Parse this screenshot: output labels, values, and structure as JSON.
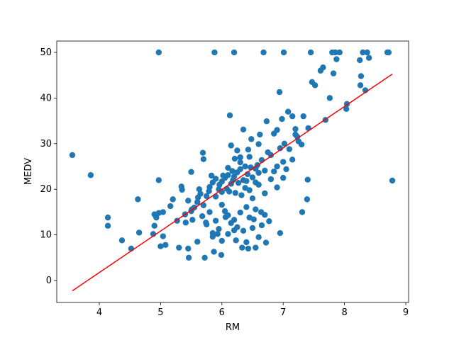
{
  "chart_data": {
    "type": "scatter",
    "x_label": "RM",
    "y_label": "MEDV",
    "xlim": [
      3.306,
      9.046
    ],
    "ylim": [
      -4.81,
      52.48
    ],
    "xticks": [
      4,
      5,
      6,
      7,
      8,
      9
    ],
    "yticks": [
      0,
      10,
      20,
      30,
      40,
      50
    ],
    "grid": false,
    "series": [
      {
        "type": "scatter",
        "color": "#1f77b4",
        "x": [
          3.56,
          3.86,
          4.14,
          4.14,
          4.37,
          4.52,
          4.63,
          4.65,
          4.88,
          4.9,
          4.9,
          4.93,
          4.97,
          4.97,
          4.97,
          5.0,
          5.04,
          5.04,
          5.08,
          5.16,
          5.2,
          5.27,
          5.3,
          5.34,
          5.35,
          5.4,
          5.41,
          5.45,
          5.46,
          5.5,
          5.51,
          5.52,
          5.6,
          5.61,
          5.63,
          5.68,
          5.69,
          5.7,
          5.72,
          5.74,
          5.79,
          5.83,
          5.85,
          5.88,
          5.87,
          5.9,
          5.93,
          5.96,
          5.99,
          6.0,
          6.02,
          6.06,
          6.1,
          6.13,
          6.15,
          6.18,
          6.2,
          6.21,
          6.23,
          6.3,
          6.33,
          6.38,
          6.43,
          6.43,
          6.48,
          6.5,
          6.52,
          6.55,
          6.6,
          6.62,
          6.64,
          6.68,
          6.72,
          6.73,
          6.77,
          6.8,
          6.85,
          6.9,
          6.94,
          6.95,
          6.98,
          7.01,
          7.02,
          7.08,
          7.15,
          7.2,
          7.23,
          7.31,
          7.33,
          7.39,
          7.41,
          7.45,
          7.47,
          7.52,
          7.61,
          7.65,
          7.69,
          7.76,
          7.8,
          7.82,
          7.85,
          7.87,
          7.92,
          8.03,
          8.04,
          8.25,
          8.27,
          8.26,
          8.3,
          8.34,
          8.37,
          8.4,
          8.7,
          8.72,
          8.78,
          5.8,
          5.85,
          5.9,
          5.95,
          6.0,
          6.05,
          6.08,
          6.1,
          6.12,
          6.15,
          6.17,
          6.2,
          6.22,
          6.25,
          6.27,
          6.3,
          6.32,
          6.35,
          6.38,
          6.4,
          6.42,
          6.45,
          6.47,
          6.5,
          6.55,
          6.58,
          6.6,
          6.65,
          6.7,
          6.75,
          6.8,
          6.85,
          5.75,
          5.7,
          5.65,
          5.6,
          5.55,
          5.5,
          5.45,
          6.0,
          6.05,
          6.1,
          6.15,
          6.2,
          6.25,
          6.3,
          6.35,
          6.4,
          6.45,
          6.5,
          6.55,
          6.6,
          6.65,
          6.7,
          5.9,
          5.95,
          5.8,
          5.85,
          5.75,
          6.0,
          6.1,
          6.2,
          6.4,
          6.55,
          6.7,
          6.9,
          7.0,
          6.95,
          7.1,
          7.2,
          7.25,
          7.05,
          6.45,
          6.3,
          6.25,
          6.6,
          6.9,
          7.0,
          7.15,
          7.3,
          7.4,
          6.35
        ],
        "values": [
          27.5,
          23.1,
          13.8,
          12.0,
          8.8,
          7.0,
          17.8,
          10.5,
          10.2,
          14.5,
          12.0,
          13.8,
          50,
          22.0,
          14.8,
          7.5,
          15.0,
          9.7,
          7.8,
          16.3,
          17.8,
          13.1,
          7.2,
          20.6,
          19.9,
          14.5,
          12.7,
          7.0,
          5.0,
          23.8,
          15.6,
          13.3,
          8.5,
          18.2,
          20.0,
          14.1,
          28.0,
          26.6,
          5.0,
          12.7,
          19.6,
          23.0,
          10.4,
          50,
          6.3,
          18.4,
          10.2,
          21.0,
          5.6,
          19.4,
          23.0,
          13.9,
          24.7,
          36.2,
          29.6,
          22.0,
          50,
          26.7,
          8.8,
          27.0,
          7.2,
          20.3,
          7.0,
          28.7,
          31.0,
          18.0,
          13.4,
          24.5,
          21.0,
          32.0,
          15.0,
          50,
          8.3,
          34.9,
          13.0,
          27.5,
          32.2,
          25.0,
          41.3,
          10.4,
          35.4,
          50,
          30.0,
          37.0,
          36.0,
          32.0,
          31.5,
          15.0,
          36.0,
          17.8,
          33.4,
          50,
          43.5,
          42.8,
          46.0,
          46.7,
          35.2,
          40.0,
          50,
          45.4,
          50,
          48.5,
          50,
          37.6,
          38.7,
          48.3,
          44.8,
          42.8,
          50,
          41.7,
          50,
          48.8,
          50,
          50,
          21.9,
          20.5,
          21.5,
          22.3,
          20.0,
          21.7,
          22.5,
          20.1,
          23.1,
          19.5,
          21.2,
          24.0,
          22.8,
          19.2,
          23.7,
          21.4,
          24.4,
          18.7,
          22.0,
          25.0,
          21.8,
          23.3,
          19.8,
          24.8,
          22.6,
          21.5,
          25.3,
          23.6,
          26.4,
          24.1,
          28.1,
          22.2,
          23.9,
          18.5,
          16.5,
          19.0,
          17.2,
          16.0,
          15.2,
          17.5,
          16.6,
          15.2,
          14.3,
          12.6,
          13.3,
          11.7,
          14.9,
          10.9,
          16.1,
          13.8,
          11.5,
          15.6,
          9.5,
          12.1,
          14.4,
          13.1,
          11.3,
          15.0,
          9.6,
          12.3,
          8.7,
          10.2,
          11.0,
          8.4,
          7.2,
          19.1,
          20.4,
          26.0,
          29.0,
          28.8,
          33.2,
          30.5,
          24.4,
          27.1,
          25.9,
          28.5,
          29.9,
          33.0,
          22.5,
          26.5,
          29.8,
          22.1,
          33.1
        ]
      },
      {
        "type": "line",
        "color": "#ff0000",
        "x": [
          3.56,
          8.78
        ],
        "values": [
          -2.26,
          45.25
        ]
      }
    ]
  }
}
